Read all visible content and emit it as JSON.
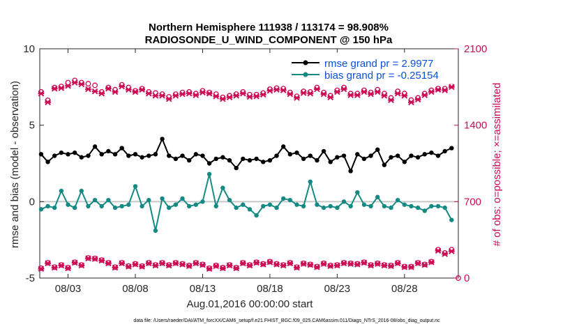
{
  "chart_data": {
    "type": "line",
    "title": "Northern Hemisphere 111938 / 113174 = 98.908%",
    "subtitle": "RADIOSONDE_U_WIND_COMPONENT @ 150 hPa",
    "xlabel": "Aug.01,2016 00:00:00 start",
    "ylabel": "rmse and bias (model - observation)",
    "ylabel_right": "# of obs: o=possible; ×=assimilated",
    "footnote": "data file: /Users/raeder/DAI/ATM_forcXX/CAM6_setup/f.e21.FHIST_BGC.f09_025.CAM6assim.011/Diags_NTrS_2016-08/obs_diag_output.nc",
    "x_unit": "day of August 2016 (12-hourly)",
    "xlim": [
      0.9,
      32.0
    ],
    "ylim": [
      -5,
      10
    ],
    "ylim_right": [
      0,
      2100
    ],
    "grid": false,
    "legend_position": "top-right",
    "zero_line": true,
    "x_tick_labels": [
      "08/03",
      "08/08",
      "08/13",
      "08/18",
      "08/23",
      "08/28"
    ],
    "x_tick_values": [
      3,
      8,
      13,
      18,
      23,
      28
    ],
    "y_tick_labels": [
      "-5",
      "0",
      "5",
      "10"
    ],
    "y_tick_values": [
      -5,
      0,
      5,
      10
    ],
    "y_right_tick_labels": [
      "0",
      "700",
      "1400",
      "2100"
    ],
    "y_right_tick_values": [
      0,
      700,
      1400,
      2100
    ],
    "x": [
      1.0,
      1.5,
      2.0,
      2.5,
      3.0,
      3.5,
      4.0,
      4.5,
      5.0,
      5.5,
      6.0,
      6.5,
      7.0,
      7.5,
      8.0,
      8.5,
      9.0,
      9.5,
      10.0,
      10.5,
      11.0,
      11.5,
      12.0,
      12.5,
      13.0,
      13.5,
      14.0,
      14.5,
      15.0,
      15.5,
      16.0,
      16.5,
      17.0,
      17.5,
      18.0,
      18.5,
      19.0,
      19.5,
      20.0,
      20.5,
      21.0,
      21.5,
      22.0,
      22.5,
      23.0,
      23.5,
      24.0,
      24.5,
      25.0,
      25.5,
      26.0,
      26.5,
      27.0,
      27.5,
      28.0,
      28.5,
      29.0,
      29.5,
      30.0,
      30.5,
      31.0,
      31.5
    ],
    "series": [
      {
        "name": "rmse grand pr = 2.9977",
        "axis": "left",
        "color": "#000000",
        "marker": "circle",
        "values": [
          3.1,
          2.6,
          3.0,
          3.2,
          3.1,
          3.2,
          2.9,
          3.0,
          3.6,
          3.1,
          3.3,
          3.1,
          3.5,
          3.0,
          3.1,
          2.9,
          3.0,
          3.1,
          4.1,
          3.0,
          2.8,
          3.0,
          2.7,
          3.1,
          3.0,
          2.5,
          2.8,
          2.9,
          2.7,
          2.2,
          2.8,
          2.7,
          2.8,
          2.6,
          2.7,
          3.0,
          3.6,
          3.1,
          3.2,
          2.8,
          3.0,
          2.7,
          3.3,
          2.6,
          2.9,
          3.0,
          2.0,
          3.1,
          2.8,
          3.0,
          3.4,
          2.4,
          2.9,
          3.0,
          2.6,
          3.0,
          2.9,
          3.1,
          3.2,
          3.0,
          3.3,
          3.5
        ]
      },
      {
        "name": "bias grand pr = -0.25154",
        "axis": "left",
        "color": "#158a84",
        "marker": "circle",
        "values": [
          -0.5,
          -0.3,
          -0.4,
          0.7,
          -0.2,
          -0.4,
          0.7,
          -0.3,
          0.1,
          -0.3,
          0.1,
          -0.4,
          -0.3,
          -0.2,
          1.0,
          -0.3,
          0.1,
          -1.9,
          0.2,
          -0.4,
          -0.2,
          0.2,
          -0.3,
          -0.2,
          0.0,
          1.8,
          -0.3,
          0.9,
          0.1,
          -0.4,
          -0.2,
          -0.5,
          -0.9,
          -0.3,
          -0.2,
          -0.4,
          0.2,
          0.1,
          -0.2,
          -0.3,
          1.3,
          -0.2,
          -0.4,
          -0.3,
          -0.4,
          0.0,
          -0.3,
          0.6,
          -0.2,
          -0.3,
          0.3,
          -0.3,
          -0.4,
          0.1,
          -0.2,
          -0.3,
          -0.4,
          -0.6,
          -0.3,
          -0.3,
          -0.4,
          -1.2
        ]
      },
      {
        "name": "possible (upper)",
        "axis": "right",
        "color": "#cc0c55",
        "marker": "circle-open",
        "values": [
          1705,
          1628,
          1745,
          1755,
          1790,
          1810,
          1790,
          1780,
          1765,
          1705,
          1745,
          1725,
          1770,
          1745,
          1715,
          1735,
          1705,
          1695,
          1685,
          1660,
          1685,
          1700,
          1705,
          1690,
          1715,
          1700,
          1685,
          1655,
          1670,
          1685,
          1705,
          1680,
          1680,
          1695,
          1730,
          1740,
          1735,
          1700,
          1665,
          1710,
          1705,
          1745,
          1700,
          1670,
          1720,
          1745,
          1690,
          1690,
          1720,
          1700,
          1725,
          1690,
          1650,
          1710,
          1690,
          1630,
          1650,
          1690,
          1720,
          1735,
          1735,
          1760
        ]
      },
      {
        "name": "assimilated (upper)",
        "axis": "right",
        "color": "#cc0c55",
        "marker": "x",
        "values": [
          1690,
          1610,
          1735,
          1740,
          1760,
          1790,
          1775,
          1730,
          1710,
          1690,
          1735,
          1705,
          1755,
          1725,
          1705,
          1725,
          1690,
          1670,
          1670,
          1640,
          1670,
          1685,
          1690,
          1675,
          1700,
          1690,
          1665,
          1640,
          1655,
          1670,
          1690,
          1660,
          1665,
          1680,
          1715,
          1725,
          1720,
          1685,
          1650,
          1695,
          1690,
          1730,
          1685,
          1655,
          1705,
          1730,
          1675,
          1675,
          1705,
          1685,
          1705,
          1670,
          1630,
          1690,
          1670,
          1610,
          1635,
          1675,
          1705,
          1725,
          1720,
          1750
        ]
      },
      {
        "name": "possible (lower)",
        "axis": "right",
        "color": "#cc0c55",
        "marker": "circle-open",
        "values": [
          90,
          140,
          100,
          120,
          95,
          145,
          120,
          185,
          180,
          165,
          140,
          100,
          140,
          110,
          130,
          110,
          140,
          120,
          140,
          120,
          140,
          130,
          115,
          140,
          125,
          90,
          115,
          95,
          120,
          95,
          140,
          120,
          145,
          130,
          150,
          130,
          120,
          140,
          100,
          135,
          125,
          105,
          135,
          115,
          120,
          140,
          135,
          130,
          145,
          120,
          135,
          120,
          115,
          140,
          105,
          105,
          140,
          125,
          150,
          260,
          230,
          260
        ]
      },
      {
        "name": "assimilated (lower)",
        "axis": "right",
        "color": "#cc0c55",
        "marker": "x",
        "values": [
          85,
          135,
          95,
          115,
          90,
          140,
          115,
          180,
          175,
          160,
          135,
          95,
          135,
          105,
          125,
          105,
          135,
          115,
          135,
          115,
          135,
          125,
          110,
          135,
          120,
          85,
          110,
          90,
          115,
          90,
          135,
          115,
          140,
          125,
          145,
          125,
          115,
          135,
          95,
          130,
          120,
          100,
          130,
          110,
          115,
          135,
          130,
          125,
          140,
          115,
          130,
          115,
          110,
          135,
          100,
          100,
          135,
          120,
          145,
          250,
          220,
          245
        ]
      }
    ]
  }
}
